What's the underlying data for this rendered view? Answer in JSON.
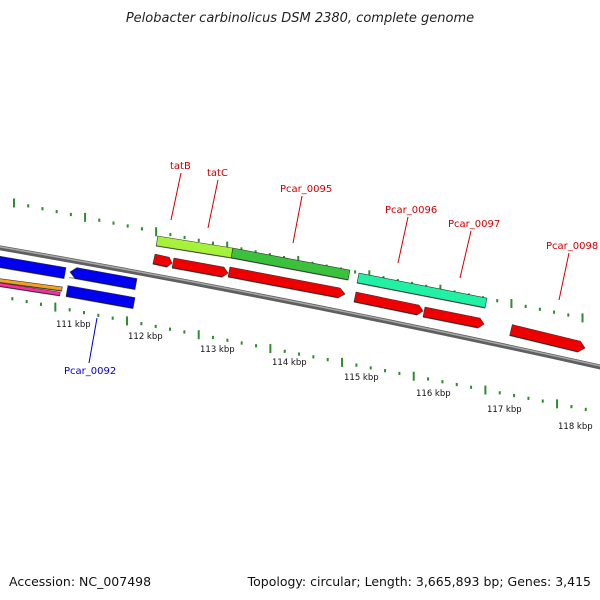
{
  "title": "Pelobacter carbinolicus DSM 2380, complete genome",
  "footer": {
    "accession": "Accession: NC_007498",
    "summary": "Topology: circular; Length: 3,665,893 bp; Genes: 3,415"
  },
  "colors": {
    "backbone": "#7a7a7a",
    "tick": "#2e8b2e",
    "label_red": "#cc0000",
    "label_blue": "#0000cc"
  },
  "scale": {
    "unit": "kbp",
    "tick_labels": [
      "111 kbp",
      "112 kbp",
      "113 kbp",
      "114 kbp",
      "115 kbp",
      "116 kbp",
      "117 kbp",
      "118 kbp"
    ]
  },
  "gene_labels": [
    {
      "text": "tatB",
      "color": "#cc0000"
    },
    {
      "text": "tatC",
      "color": "#cc0000"
    },
    {
      "text": "Pcar_0095",
      "color": "#cc0000"
    },
    {
      "text": "Pcar_0096",
      "color": "#cc0000"
    },
    {
      "text": "Pcar_0097",
      "color": "#cc0000"
    },
    {
      "text": "Pcar_0098",
      "color": "#cc0000"
    },
    {
      "text": "Pcar_0092",
      "color": "#0000cc"
    }
  ],
  "features": [
    {
      "name": "forward-gene",
      "color": "#0000ee",
      "strand": "+"
    },
    {
      "name": "reverse-gene",
      "color": "#0000ee",
      "strand": "-"
    },
    {
      "name": "Pcar_0092",
      "color": "#0000ee",
      "strand": "+"
    },
    {
      "name": "orange-feature",
      "color": "#f4a020",
      "strand": "+"
    },
    {
      "name": "pink-feature",
      "color": "#ff2ea0",
      "strand": "+"
    },
    {
      "name": "tatB",
      "color": "#a6f23a",
      "strand": "+"
    },
    {
      "name": "tatC",
      "color": "#3cc13c",
      "strand": "+"
    },
    {
      "name": "Pcar_0096",
      "color": "#22f0a4",
      "strand": "+"
    },
    {
      "name": "red-cds-1",
      "color": "#ee0000",
      "strand": "+"
    },
    {
      "name": "red-cds-2",
      "color": "#ee0000",
      "strand": "+"
    },
    {
      "name": "red-cds-3",
      "color": "#ee0000",
      "strand": "+"
    },
    {
      "name": "red-cds-4",
      "color": "#ee0000",
      "strand": "+"
    },
    {
      "name": "red-cds-5",
      "color": "#ee0000",
      "strand": "+"
    },
    {
      "name": "red-cds-6",
      "color": "#ee0000",
      "strand": "+"
    }
  ]
}
